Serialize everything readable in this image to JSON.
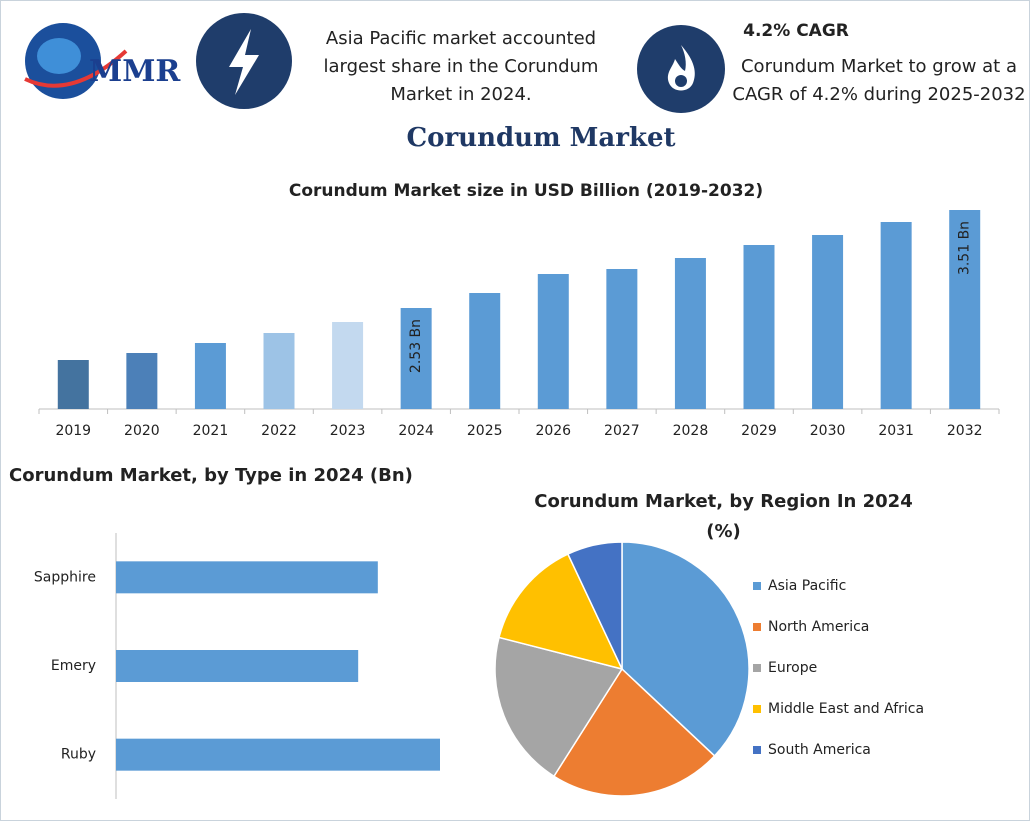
{
  "header": {
    "logo": "MMR",
    "info_left": "Asia Pacific market accounted largest share in the Corundum Market in 2024.",
    "info_right_title": "4.2% CAGR",
    "info_right": "Corundum Market to grow at a CAGR of 4.2% during 2025-2032"
  },
  "title": "Corundum Market",
  "chart_data": [
    {
      "type": "bar",
      "title": "Corundum Market size in USD Billion (2019-2032)",
      "categories": [
        "2019",
        "2020",
        "2021",
        "2022",
        "2023",
        "2024",
        "2025",
        "2026",
        "2027",
        "2028",
        "2029",
        "2030",
        "2031",
        "2032"
      ],
      "values": [
        2.01,
        2.08,
        2.18,
        2.28,
        2.39,
        2.53,
        2.68,
        2.87,
        2.92,
        3.03,
        3.16,
        3.26,
        3.39,
        3.51
      ],
      "value_labels": [
        null,
        null,
        null,
        null,
        null,
        "2.53 Bn",
        null,
        null,
        null,
        null,
        null,
        null,
        null,
        "3.51 Bn"
      ],
      "colors": [
        "#44739f",
        "#4c80b8",
        "#5b9bd5",
        "#9dc3e6",
        "#c3d9ef",
        "#5b9bd5",
        "#5b9bd5",
        "#5b9bd5",
        "#5b9bd5",
        "#5b9bd5",
        "#5b9bd5",
        "#5b9bd5",
        "#5b9bd5",
        "#5b9bd5"
      ],
      "ylim": [
        1.52,
        3.6
      ]
    },
    {
      "type": "hbar",
      "title": "Corundum Market, by Type in 2024 (Bn)",
      "categories": [
        "Sapphire",
        "Emery",
        "Ruby"
      ],
      "values": [
        0.8,
        0.74,
        0.99
      ],
      "color": "#5b9bd5",
      "xlim": [
        0,
        1.1
      ]
    },
    {
      "type": "pie",
      "title": "Corundum Market, by Region In 2024 (%)",
      "categories": [
        "Asia Pacific",
        "North America",
        "Europe",
        "Middle East and Africa",
        "South America"
      ],
      "values": [
        37,
        22,
        20,
        14,
        7
      ],
      "colors": [
        "#5b9bd5",
        "#ed7d31",
        "#a5a5a5",
        "#ffc000",
        "#4472c4"
      ],
      "legend": "right"
    }
  ]
}
